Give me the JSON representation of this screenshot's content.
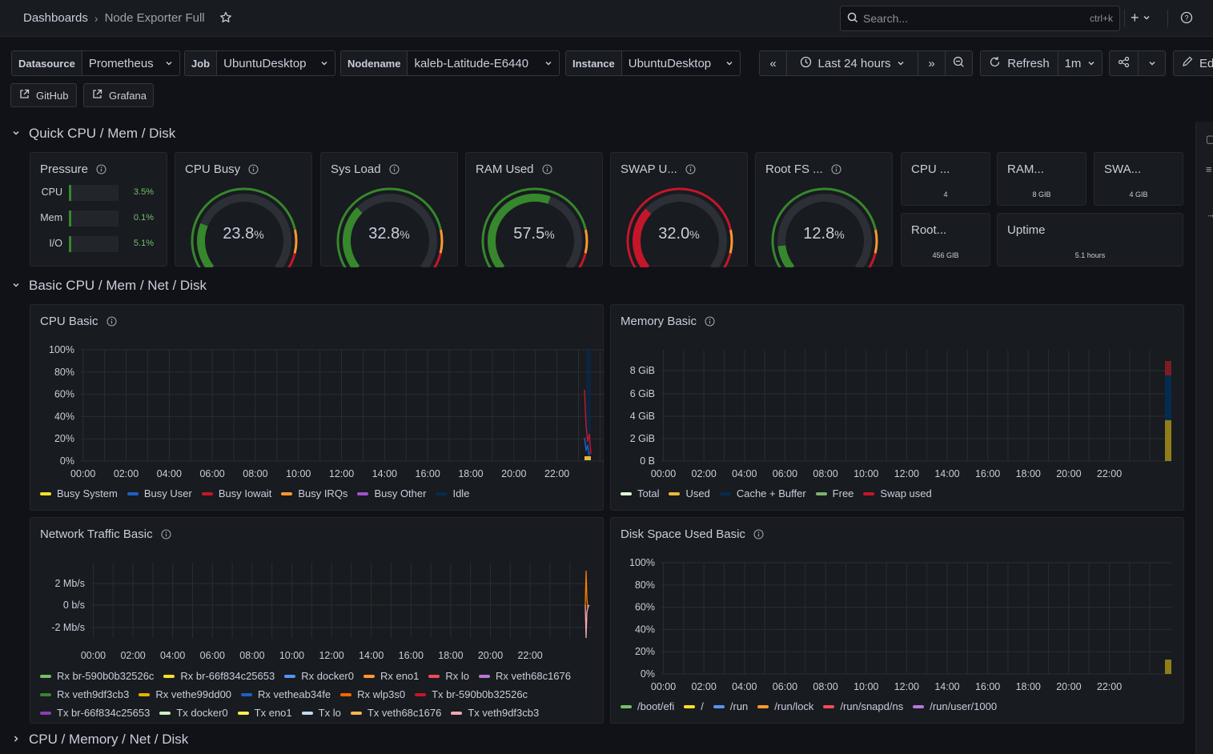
{
  "nav": {
    "breadcrumb_root": "Dashboards",
    "breadcrumb_current": "Node Exporter Full",
    "search_placeholder": "Search...",
    "search_shortcut": "ctrl+k"
  },
  "variables": [
    {
      "label": "Datasource",
      "value": "Prometheus"
    },
    {
      "label": "Job",
      "value": "UbuntuDesktop"
    },
    {
      "label": "Nodename",
      "value": "kaleb-Latitude-E6440"
    },
    {
      "label": "Instance",
      "value": "UbuntuDesktop"
    }
  ],
  "toolbar": {
    "time_range": "Last 24 hours",
    "refresh_label": "Refresh",
    "refresh_interval": "1m",
    "edit_label": "Ed"
  },
  "links": {
    "github": "GitHub",
    "grafana": "Grafana"
  },
  "rows": {
    "quick": "Quick CPU / Mem / Disk",
    "basic": "Basic CPU / Mem / Net / Disk",
    "next": "CPU / Memory / Net / Disk"
  },
  "pressure": {
    "title": "Pressure",
    "items": [
      {
        "label": "CPU",
        "value": "3.5%",
        "fraction": 0.035
      },
      {
        "label": "Mem",
        "value": "0.1%",
        "fraction": 0.001
      },
      {
        "label": "I/O",
        "value": "5.1%",
        "fraction": 0.051
      }
    ]
  },
  "gauges": [
    {
      "title": "CPU Busy",
      "value": "23.8",
      "unit": "%",
      "fraction": 0.238,
      "color": "#37872d"
    },
    {
      "title": "Sys Load",
      "value": "32.8",
      "unit": "%",
      "fraction": 0.328,
      "color": "#37872d"
    },
    {
      "title": "RAM Used",
      "value": "57.5",
      "unit": "%",
      "fraction": 0.575,
      "color": "#37872d"
    },
    {
      "title": "SWAP U...",
      "value": "32.0",
      "unit": "%",
      "fraction": 0.32,
      "color": "#c4162a"
    },
    {
      "title": "Root FS ...",
      "value": "12.8",
      "unit": "%",
      "fraction": 0.128,
      "color": "#37872d"
    }
  ],
  "stats": [
    {
      "title": "CPU ...",
      "value": "4"
    },
    {
      "title": "RAM...",
      "value": "8 GIB"
    },
    {
      "title": "SWA...",
      "value": "4 GIB"
    },
    {
      "title": "Root...",
      "value": "456 GIB"
    },
    {
      "title": "Uptime",
      "value": "5.1 hours"
    }
  ],
  "x_ticks": [
    "00:00",
    "02:00",
    "04:00",
    "06:00",
    "08:00",
    "10:00",
    "12:00",
    "14:00",
    "16:00",
    "18:00",
    "20:00",
    "22:00"
  ],
  "cpu_basic": {
    "title": "CPU Basic",
    "y_ticks": [
      "100%",
      "80%",
      "60%",
      "40%",
      "20%",
      "0%"
    ],
    "legend": [
      {
        "name": "Busy System",
        "color": "#fade2a"
      },
      {
        "name": "Busy User",
        "color": "#1f60c4"
      },
      {
        "name": "Busy Iowait",
        "color": "#c4162a"
      },
      {
        "name": "Busy IRQs",
        "color": "#ff9830"
      },
      {
        "name": "Busy Other",
        "color": "#a352cc"
      },
      {
        "name": "Idle",
        "color": "#052b51"
      }
    ]
  },
  "memory_basic": {
    "title": "Memory Basic",
    "y_ticks": [
      "8 GiB",
      "6 GiB",
      "4 GiB",
      "2 GiB",
      "0 B"
    ],
    "legend": [
      {
        "name": "Total",
        "color": "#e0f9d7"
      },
      {
        "name": "Used",
        "color": "#eab839"
      },
      {
        "name": "Cache + Buffer",
        "color": "#052b51"
      },
      {
        "name": "Free",
        "color": "#7eb26d"
      },
      {
        "name": "Swap used",
        "color": "#c4162a"
      }
    ]
  },
  "network_basic": {
    "title": "Network Traffic Basic",
    "y_ticks": [
      "2 Mb/s",
      "0 b/s",
      "-2 Mb/s"
    ],
    "legend": [
      {
        "name": "Rx br-590b0b32526c",
        "color": "#73bf69"
      },
      {
        "name": "Rx br-66f834c25653",
        "color": "#fade2a"
      },
      {
        "name": "Rx docker0",
        "color": "#5794f2"
      },
      {
        "name": "Rx eno1",
        "color": "#ff9830"
      },
      {
        "name": "Rx lo",
        "color": "#f2495c"
      },
      {
        "name": "Rx veth68c1676",
        "color": "#b877d9"
      },
      {
        "name": "Rx veth9df3cb3",
        "color": "#37872d"
      },
      {
        "name": "Rx vethe99dd00",
        "color": "#e0b400"
      },
      {
        "name": "Rx vetheab34fe",
        "color": "#1f60c4"
      },
      {
        "name": "Rx wlp3s0",
        "color": "#fa6400"
      },
      {
        "name": "Tx br-590b0b32526c",
        "color": "#c4162a"
      },
      {
        "name": "Tx br-66f834c25653",
        "color": "#8f3bb8"
      },
      {
        "name": "Tx docker0",
        "color": "#c8f2c2"
      },
      {
        "name": "Tx eno1",
        "color": "#ffee52"
      },
      {
        "name": "Tx lo",
        "color": "#c0d8ff"
      },
      {
        "name": "Tx veth68c1676",
        "color": "#ffb357"
      },
      {
        "name": "Tx veth9df3cb3",
        "color": "#ffa6b0"
      }
    ]
  },
  "disk_basic": {
    "title": "Disk Space Used Basic",
    "y_ticks": [
      "100%",
      "80%",
      "60%",
      "40%",
      "20%",
      "0%"
    ],
    "legend": [
      {
        "name": "/boot/efi",
        "color": "#73bf69"
      },
      {
        "name": "/",
        "color": "#fade2a"
      },
      {
        "name": "/run",
        "color": "#5794f2"
      },
      {
        "name": "/run/lock",
        "color": "#ff9830"
      },
      {
        "name": "/run/snapd/ns",
        "color": "#f2495c"
      },
      {
        "name": "/run/user/1000",
        "color": "#b877d9"
      }
    ]
  }
}
